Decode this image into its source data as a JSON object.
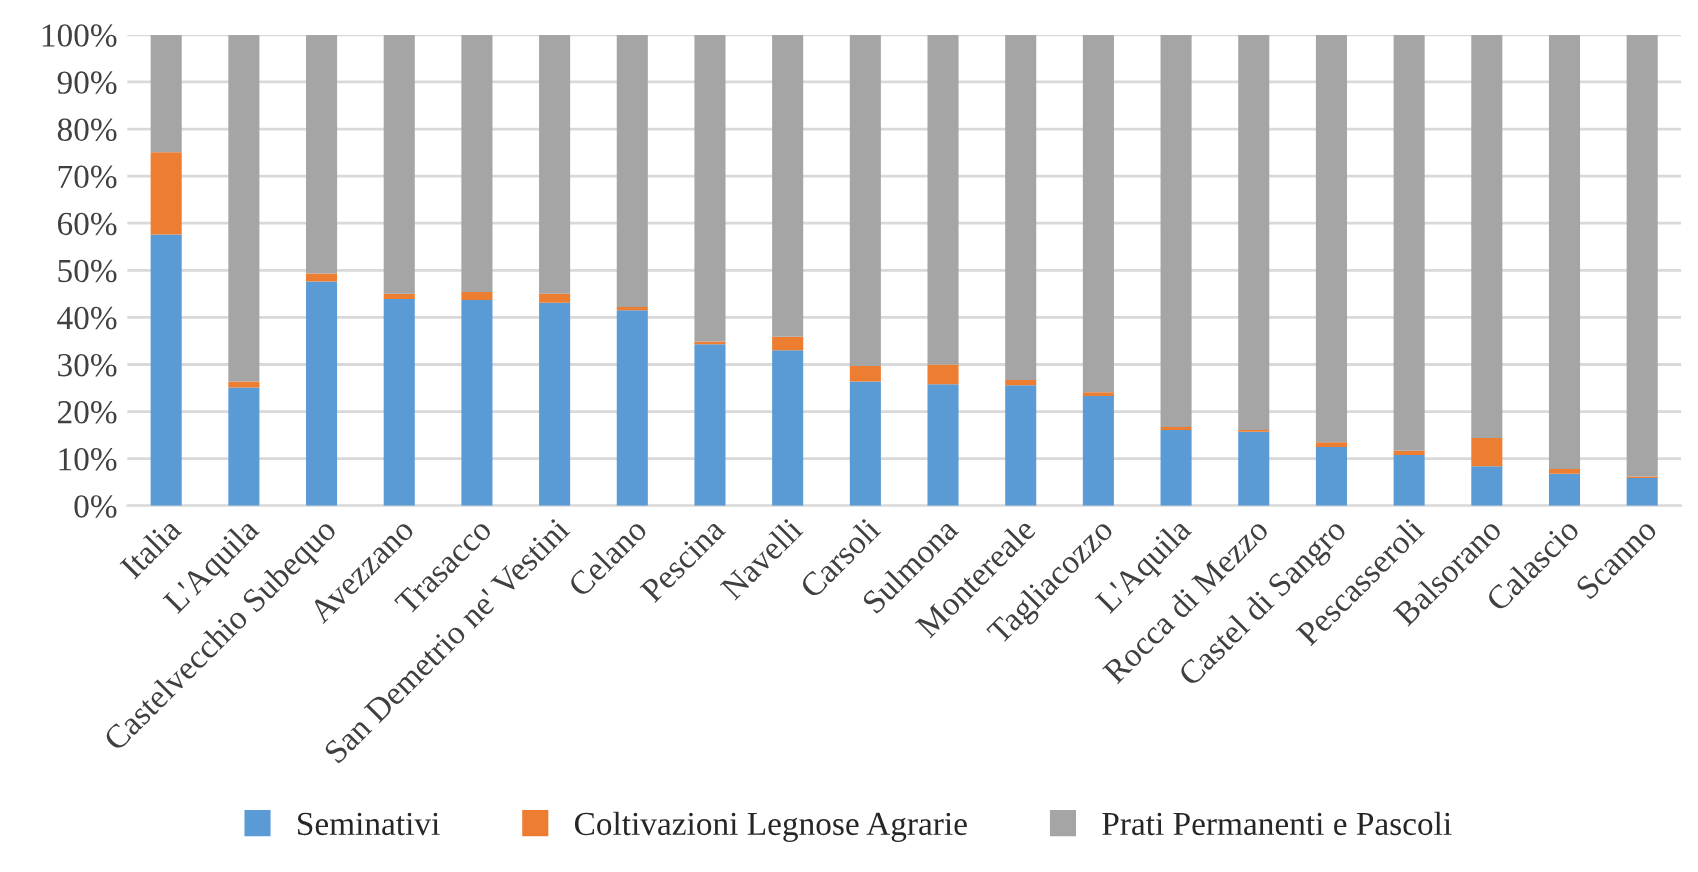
{
  "chart_data": {
    "type": "bar",
    "stacked": true,
    "categories": [
      "Italia",
      "L'Aquila",
      "Castelvecchio Subequo",
      "Avezzano",
      "Trasacco",
      "San Demetrio ne' Vestini",
      "Celano",
      "Pescina",
      "Navelli",
      "Carsoli",
      "Sulmona",
      "Montereale",
      "Tagliacozzo",
      "L'Aquila",
      "Rocca di Mezzo",
      "Castel di Sangro",
      "Pescasseroli",
      "Balsorano",
      "Calascio",
      "Scanno"
    ],
    "series": [
      {
        "name": "Seminativi",
        "color": "#5b9bd5",
        "values": [
          57.6,
          25.1,
          47.6,
          43.9,
          43.7,
          43.1,
          41.5,
          34.3,
          33.0,
          26.4,
          25.8,
          25.6,
          23.3,
          16.1,
          15.7,
          12.5,
          10.8,
          8.4,
          6.8,
          5.9
        ]
      },
      {
        "name": "Coltivazioni Legnose Agrarie",
        "color": "#ed7d31",
        "values": [
          17.5,
          1.3,
          1.7,
          1.1,
          1.7,
          1.9,
          0.7,
          0.6,
          2.9,
          3.3,
          4.2,
          1.1,
          0.8,
          0.6,
          0.4,
          1.0,
          0.9,
          6.0,
          1.0,
          0.3
        ]
      },
      {
        "name": "Prati Permanenti e Pascoli",
        "color": "#a5a5a5",
        "values": [
          24.9,
          73.6,
          50.7,
          55.0,
          54.6,
          55.0,
          57.8,
          65.1,
          64.1,
          70.3,
          70.0,
          73.3,
          75.9,
          83.3,
          83.9,
          86.5,
          88.3,
          85.6,
          92.2,
          93.8
        ]
      }
    ],
    "ylim": [
      0,
      100
    ],
    "yticks": [
      {
        "value": 0,
        "label": "0%"
      },
      {
        "value": 10,
        "label": "10%"
      },
      {
        "value": 20,
        "label": "20%"
      },
      {
        "value": 30,
        "label": "30%"
      },
      {
        "value": 40,
        "label": "40%"
      },
      {
        "value": 50,
        "label": "50%"
      },
      {
        "value": 60,
        "label": "60%"
      },
      {
        "value": 70,
        "label": "70%"
      },
      {
        "value": 80,
        "label": "80%"
      },
      {
        "value": 90,
        "label": "90%"
      },
      {
        "value": 100,
        "label": "100%"
      }
    ],
    "grid": "y",
    "legend": "bottom"
  }
}
